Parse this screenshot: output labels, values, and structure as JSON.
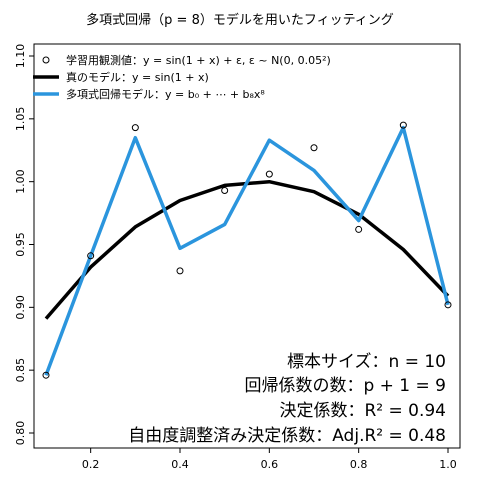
{
  "chart_data": {
    "type": "line",
    "title": "多項式回帰（p = 8）モデルを用いたフィッティング",
    "xlabel": "",
    "ylabel": "",
    "xlim": [
      0.1,
      1.0
    ],
    "ylim": [
      0.8,
      1.1
    ],
    "x_ticks": [
      "0.2",
      "0.4",
      "0.6",
      "0.8",
      "1.0"
    ],
    "y_ticks": [
      "0.80",
      "0.85",
      "0.90",
      "0.95",
      "1.00",
      "1.05",
      "1.10"
    ],
    "grid": false,
    "legend_position": "top-left",
    "legend": [
      {
        "label": "学習用観測値：y = sin(1 + x) + ε, ε ~ N(0, 0.05²)",
        "color": "#000000",
        "style": "open-circle"
      },
      {
        "label": "真のモデル：y = sin(1 + x)",
        "color": "#000000",
        "style": "thick-line"
      },
      {
        "label": "多項式回帰モデル：y = b₀ + ⋯ + b₈x⁸",
        "color": "#2b95dd",
        "style": "thick-line"
      }
    ],
    "observations": {
      "x": [
        0.1,
        0.2,
        0.3,
        0.4,
        0.5,
        0.6,
        0.7,
        0.8,
        0.9,
        1.0
      ],
      "y": [
        0.846,
        0.941,
        1.043,
        0.929,
        0.993,
        1.006,
        1.027,
        0.962,
        1.045,
        0.902
      ]
    },
    "true_model": {
      "x": [
        0.1,
        0.2,
        0.3,
        0.4,
        0.5,
        0.6,
        0.7,
        0.8,
        0.9,
        1.0
      ],
      "y": [
        0.891,
        0.932,
        0.964,
        0.985,
        0.997,
        1.0,
        0.992,
        0.974,
        0.946,
        0.909
      ]
    },
    "poly_model": {
      "x": [
        0.1,
        0.2,
        0.3,
        0.4,
        0.5,
        0.6,
        0.7,
        0.8,
        0.9,
        1.0
      ],
      "y": [
        0.846,
        0.941,
        1.035,
        0.947,
        0.966,
        1.033,
        1.009,
        0.969,
        1.043,
        0.902
      ]
    },
    "annotations": [
      "標本サイズ：n = 10",
      "回帰係数の数：p + 1 = 9",
      "決定係数：R² = 0.94",
      "自由度調整済み決定係数：Adj.R² = 0.48"
    ],
    "colors": {
      "observations": "#000000",
      "true_model": "#000000",
      "poly_model": "#2b95dd"
    }
  }
}
